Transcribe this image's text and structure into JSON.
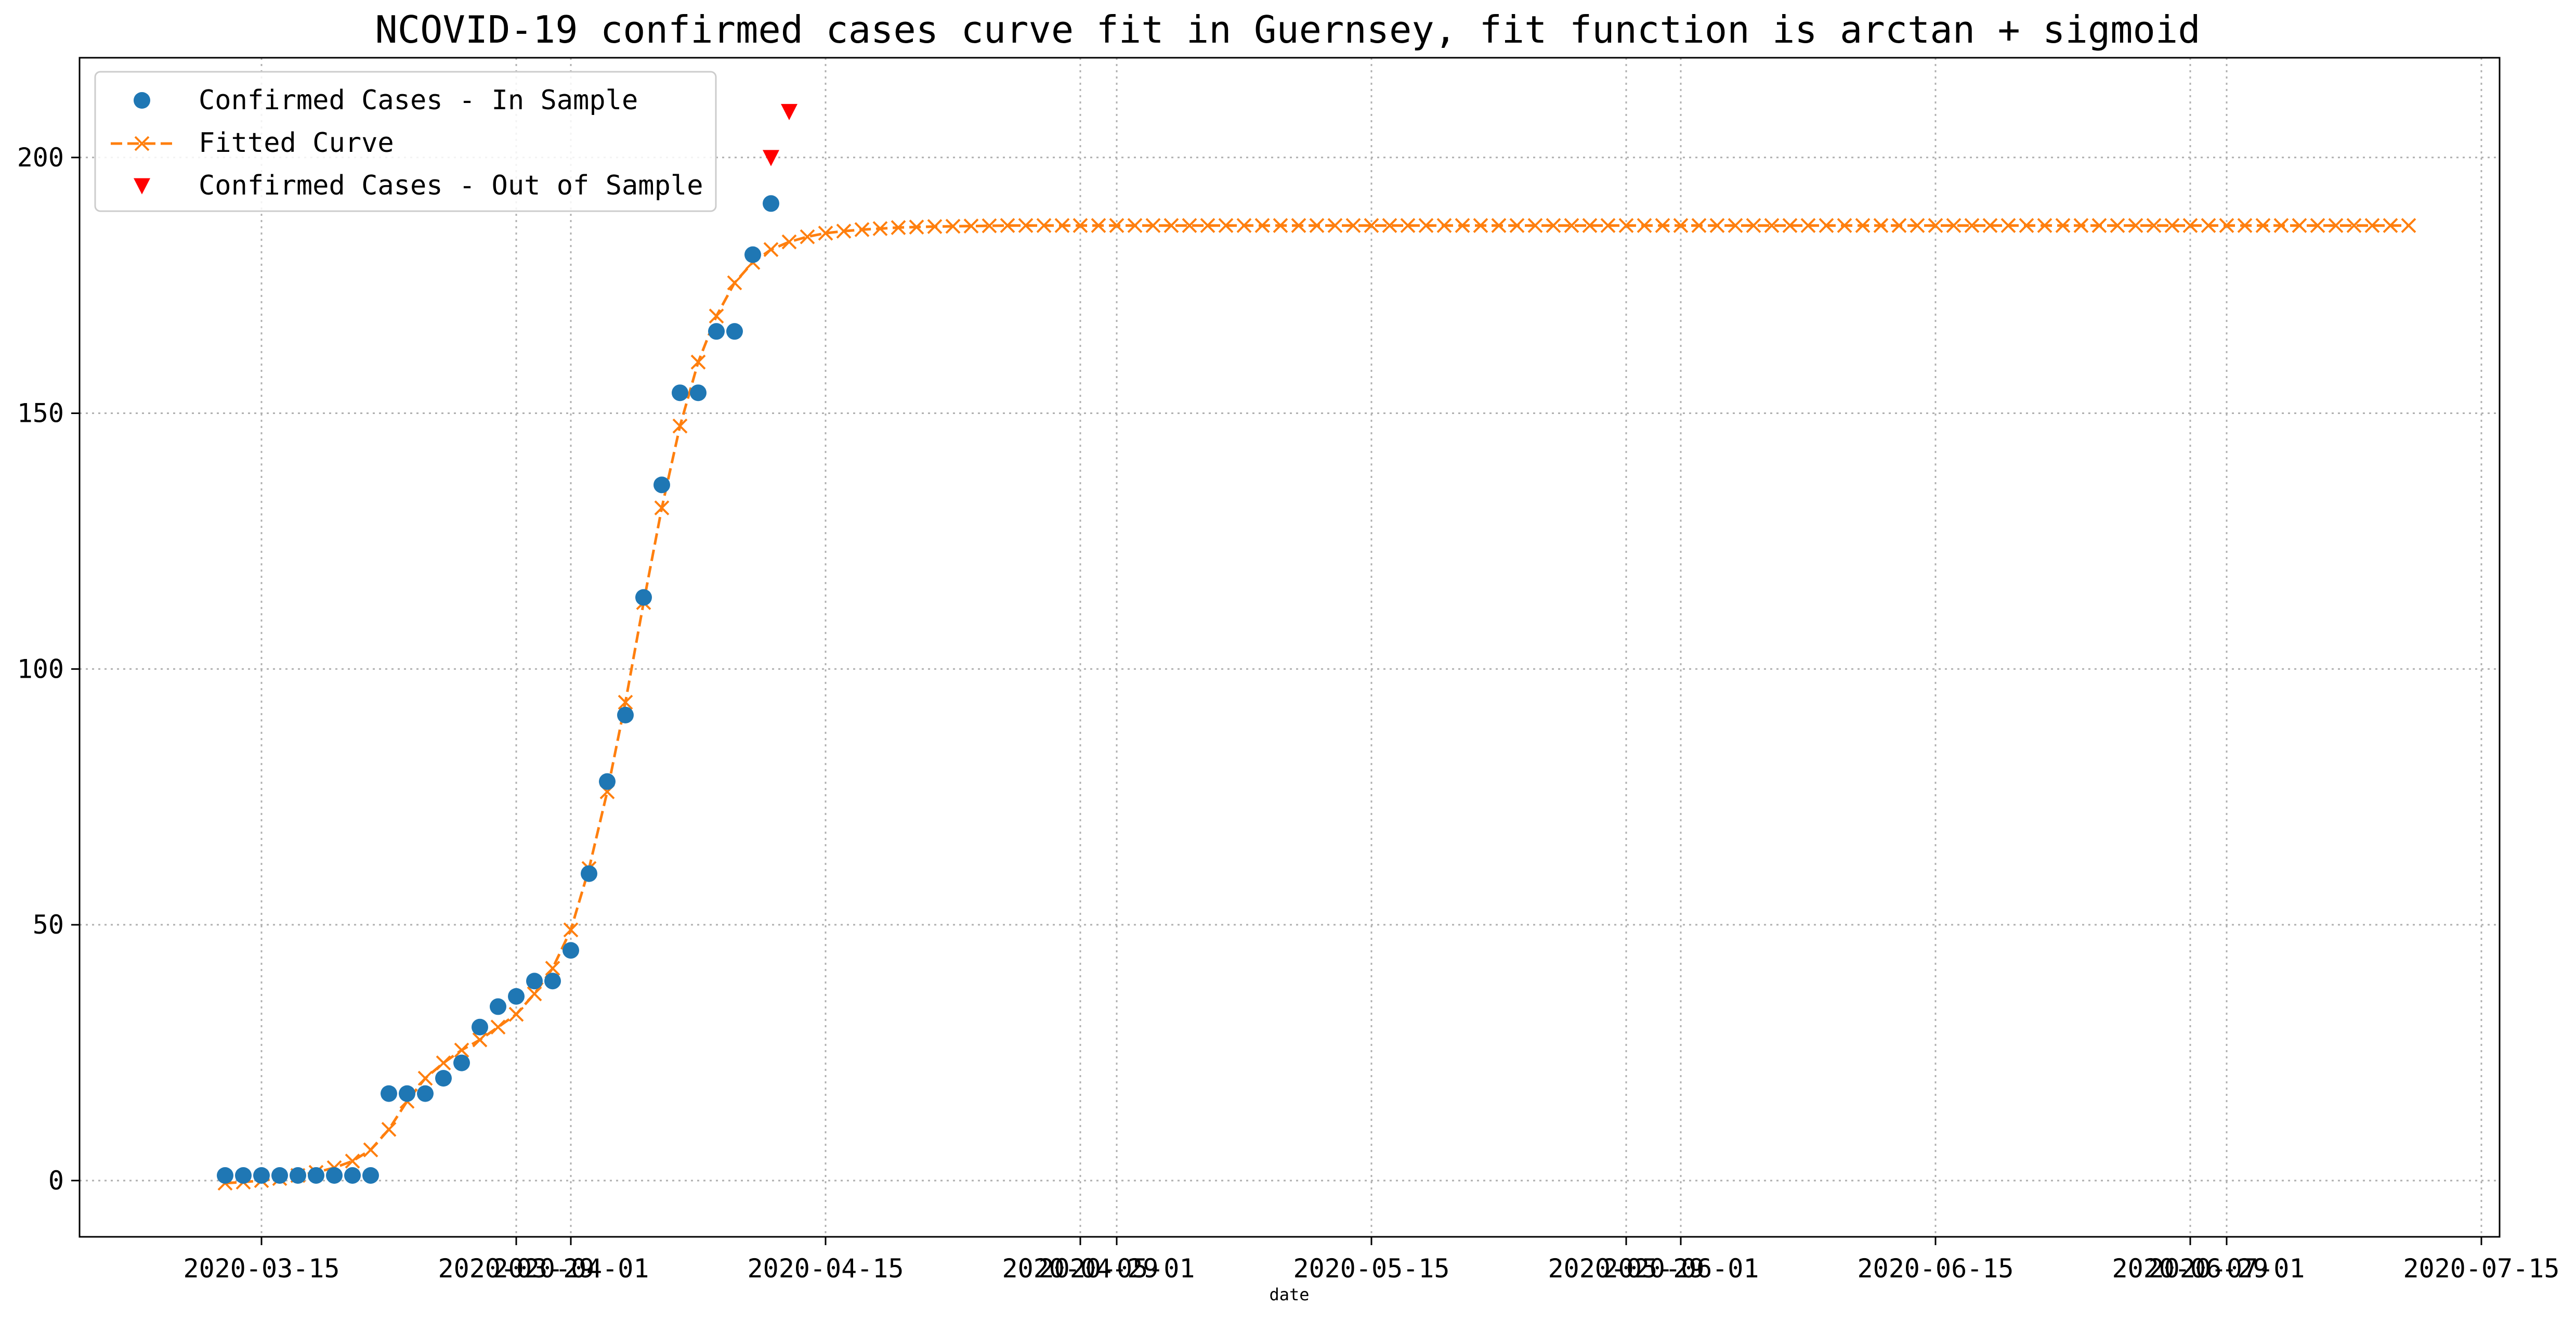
{
  "chart_data": {
    "type": "line",
    "title": "NCOVID-19 confirmed cases curve fit in Guernsey, fit function is arctan + sigmoid",
    "xlabel": "date",
    "ylabel": "",
    "ylim": [
      -11,
      219.5
    ],
    "xlim": [
      "2020-03-05",
      "2020-07-16"
    ],
    "grid": true,
    "legend_position": "top-left",
    "x_ticks": [
      "2020-03-15",
      "2020-03-29",
      "2020-04-01",
      "2020-04-15",
      "2020-04-29",
      "2020-05-01",
      "2020-05-15",
      "2020-05-29",
      "2020-06-01",
      "2020-06-15",
      "2020-06-29",
      "2020-07-01",
      "2020-07-15"
    ],
    "y_ticks": [
      0,
      50,
      100,
      150,
      200
    ],
    "colors": {
      "in_sample": "#1f77b4",
      "fitted": "#ff7f0e",
      "out_of_sample": "#ff0000"
    },
    "series": [
      {
        "name": "Confirmed Cases - In Sample",
        "marker": "circle",
        "start_date": "2020-03-13",
        "values": [
          1,
          1,
          1,
          1,
          1,
          1,
          1,
          1,
          1,
          17,
          17,
          17,
          20,
          23,
          30,
          34,
          36,
          39,
          39,
          45,
          60,
          78,
          91,
          114,
          136,
          154,
          154,
          166,
          166,
          181,
          191
        ]
      },
      {
        "name": "Fitted Curve",
        "marker": "x-dashed",
        "start_date": "2020-03-13",
        "end_date": "2020-07-11",
        "values": [
          -0.5,
          -0.3,
          0,
          0.4,
          1,
          1.6,
          2.5,
          3.8,
          6,
          10,
          15.5,
          20,
          23,
          25.5,
          27.5,
          30,
          32.5,
          36.5,
          41.5,
          49,
          61,
          76,
          93.5,
          113,
          131.5,
          147.5,
          160,
          169,
          175.5,
          179.5,
          182,
          183.5,
          184.5,
          185.2,
          185.6,
          185.9,
          186.1,
          186.3,
          186.4,
          186.5,
          186.55,
          186.6,
          186.65,
          186.7
        ]
      },
      {
        "name": "Confirmed Cases - Out of Sample",
        "marker": "triangle-down",
        "points": [
          {
            "x": "2020-04-12",
            "y": 200
          },
          {
            "x": "2020-04-13",
            "y": 209
          }
        ]
      }
    ]
  }
}
